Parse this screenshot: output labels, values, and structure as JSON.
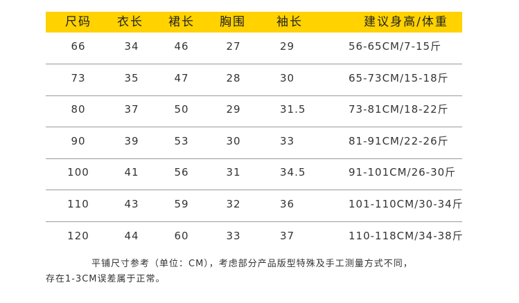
{
  "colors": {
    "header_bg": "#FFD200",
    "divider": "#999999"
  },
  "table": {
    "headers": [
      "尺码",
      "衣长",
      "裙长",
      "胸围",
      "袖长",
      "建议身高/体重"
    ],
    "rows": [
      [
        "66",
        "34",
        "46",
        "27",
        "29",
        "56-65CM/7-15斤"
      ],
      [
        "73",
        "35",
        "47",
        "28",
        "30",
        "65-73CM/15-18斤"
      ],
      [
        "80",
        "37",
        "50",
        "29",
        "31.5",
        "73-81CM/18-22斤"
      ],
      [
        "90",
        "39",
        "53",
        "30",
        "33",
        "81-91CM/22-26斤"
      ],
      [
        "100",
        "41",
        "56",
        "31",
        "34.5",
        "91-101CM/26-30斤"
      ],
      [
        "110",
        "43",
        "59",
        "32",
        "36",
        "101-110CM/30-34斤"
      ],
      [
        "120",
        "44",
        "60",
        "33",
        "37",
        "110-118CM/34-38斤"
      ]
    ]
  },
  "note": {
    "line1": "平铺尺寸参考（单位：CM），考虑部分产品版型特殊及手工测量方式不同，",
    "line2": "存在1-3CM误差属于正常。"
  }
}
